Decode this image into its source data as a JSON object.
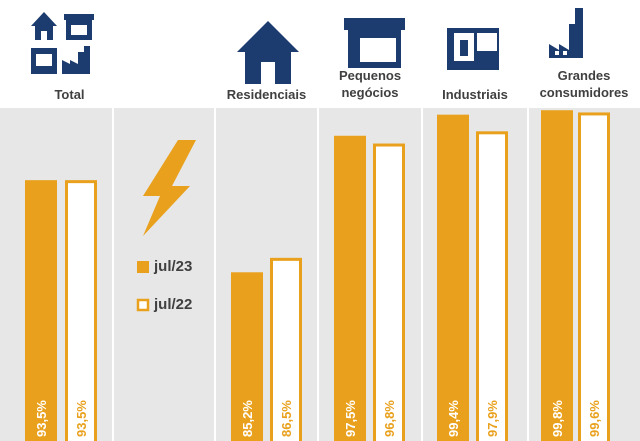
{
  "chart_data": {
    "type": "bar",
    "categories": [
      "Total",
      "Residenciais",
      "Pequenos negócios",
      "Industriais",
      "Grandes consumidores"
    ],
    "series": [
      {
        "name": "jul/23",
        "color": "#e9a11d",
        "values": [
          93.5,
          85.2,
          97.5,
          99.4,
          99.8
        ],
        "value_labels": [
          "93,5%",
          "85,2%",
          "97,5%",
          "99,4%",
          "99,8%"
        ]
      },
      {
        "name": "jul/22",
        "color": "#e9a11d",
        "values": [
          93.5,
          86.5,
          96.8,
          97.9,
          99.6
        ],
        "value_labels": [
          "93,5%",
          "86,5%",
          "96,8%",
          "97,9%",
          "99,6%"
        ]
      }
    ],
    "ylim": [
      70,
      100
    ]
  }
}
